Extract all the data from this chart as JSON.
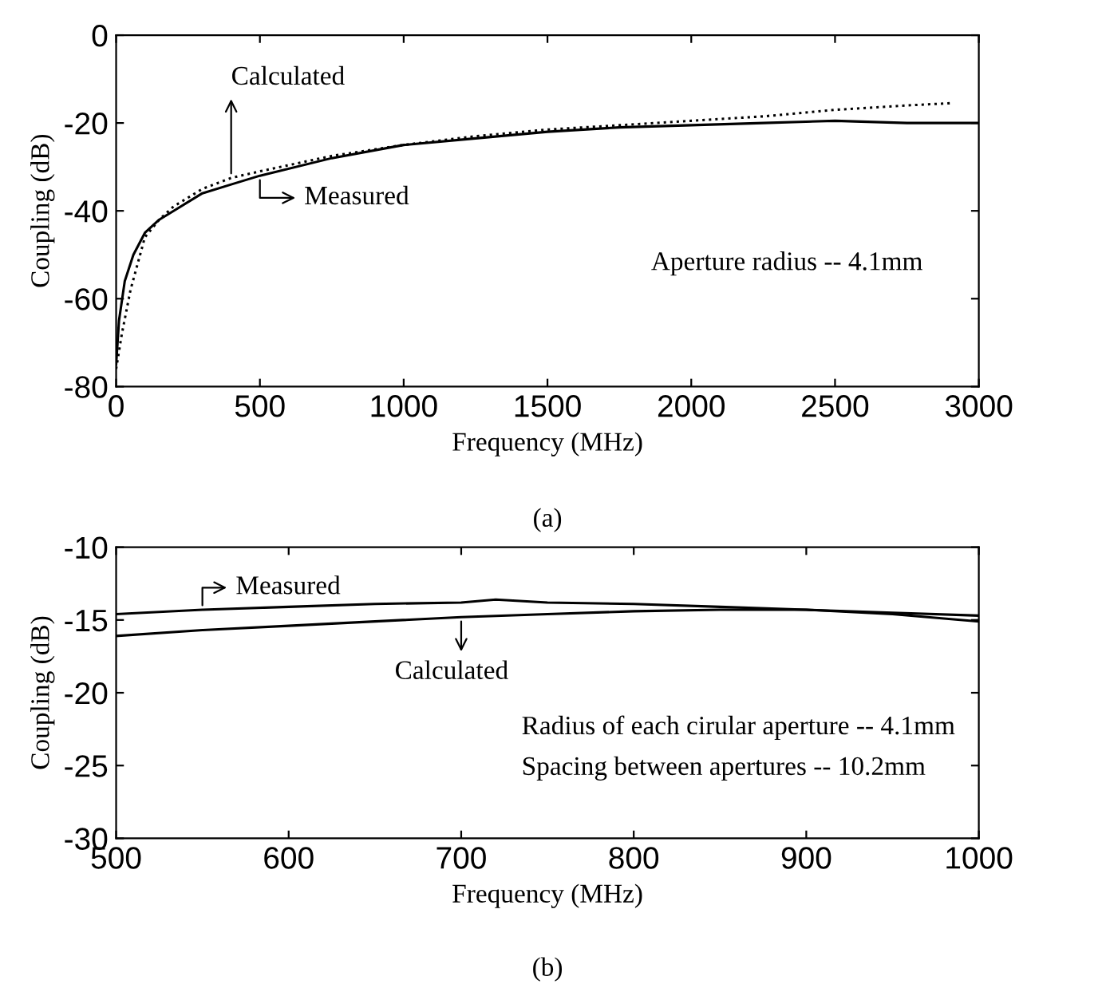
{
  "chart_data": [
    {
      "type": "line",
      "xlabel": "Frequency (MHz)",
      "ylabel": "Coupling (dB)",
      "xlim": [
        0,
        3000
      ],
      "ylim": [
        -80,
        0
      ],
      "xticks": [
        0,
        500,
        1000,
        1500,
        2000,
        2500,
        3000
      ],
      "yticks": [
        -80,
        -60,
        -40,
        -20,
        0
      ],
      "grid": false,
      "legend": "top left",
      "series": [
        {
          "name": "Calculated",
          "color": "#000000",
          "line_style": "dotted",
          "x": [
            0,
            20,
            50,
            100,
            150,
            200,
            300,
            400,
            500,
            750,
            1000,
            1250,
            1500,
            1750,
            2000,
            2250,
            2500,
            2750,
            2900
          ],
          "values": [
            -76,
            -68,
            -58,
            -46,
            -42,
            -39,
            -35,
            -32.5,
            -31,
            -27.5,
            -25,
            -23,
            -21.5,
            -20.5,
            -19.5,
            -18.5,
            -17,
            -16,
            -15.5
          ]
        },
        {
          "name": "Measured",
          "color": "#000000",
          "line_style": "solid",
          "x": [
            0,
            10,
            30,
            60,
            100,
            150,
            200,
            300,
            400,
            500,
            750,
            1000,
            1250,
            1500,
            1750,
            2000,
            2250,
            2500,
            2750,
            3000
          ],
          "values": [
            -75,
            -65,
            -56,
            -50,
            -45,
            -42,
            -40,
            -36,
            -34,
            -32,
            -28,
            -25,
            -23.5,
            -22,
            -21,
            -20.5,
            -20,
            -19.5,
            -20,
            -20
          ]
        }
      ],
      "annotations": [
        "Aperture radius -- 4.1mm",
        "(a)"
      ]
    },
    {
      "type": "line",
      "xlabel": "Frequency (MHz)",
      "ylabel": "Coupling (dB)",
      "xlim": [
        500,
        1000
      ],
      "ylim": [
        -30,
        -10
      ],
      "xticks": [
        500,
        600,
        700,
        800,
        900,
        1000
      ],
      "yticks": [
        -30,
        -25,
        -20,
        -15,
        -10
      ],
      "grid": false,
      "legend": "top left",
      "series": [
        {
          "name": "Measured",
          "color": "#000000",
          "line_style": "solid",
          "x": [
            500,
            550,
            600,
            650,
            700,
            720,
            750,
            800,
            850,
            900,
            950,
            1000
          ],
          "values": [
            -14.6,
            -14.3,
            -14.1,
            -13.9,
            -13.8,
            -13.6,
            -13.8,
            -13.9,
            -14.1,
            -14.3,
            -14.5,
            -14.7
          ]
        },
        {
          "name": "Calculated",
          "color": "#000000",
          "line_style": "solid",
          "x": [
            500,
            550,
            600,
            650,
            700,
            750,
            800,
            850,
            900,
            950,
            1000
          ],
          "values": [
            -16.1,
            -15.7,
            -15.4,
            -15.1,
            -14.8,
            -14.6,
            -14.4,
            -14.3,
            -14.3,
            -14.6,
            -15.1
          ]
        }
      ],
      "annotations": [
        "Radius of each cirular aperture -- 4.1mm",
        "Spacing between apertures -- 10.2mm",
        "(b)"
      ]
    }
  ]
}
